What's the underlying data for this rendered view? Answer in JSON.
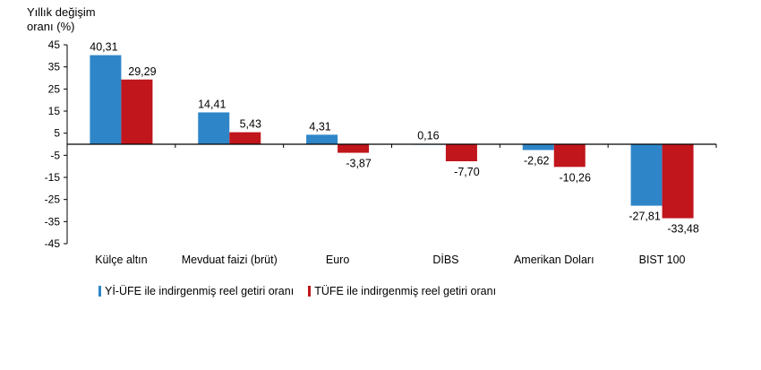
{
  "chart_data": {
    "type": "bar",
    "title": "",
    "ylabel_lines": [
      "Yıllık değişim",
      "oranı (%)"
    ],
    "ylim": [
      -45,
      45
    ],
    "yticks": [
      45,
      35,
      25,
      15,
      5,
      -5,
      -15,
      -25,
      -35,
      -45
    ],
    "categories": [
      "Külçe altın",
      "Mevduat faizi (brüt)",
      "Euro",
      "DİBS",
      "Amerikan Doları",
      "BIST 100"
    ],
    "series": [
      {
        "name": "Yİ-ÜFE ile indirgenmiş reel getiri oranı",
        "color": "#2e86c8",
        "values": [
          40.31,
          14.41,
          4.31,
          0.16,
          -2.62,
          -27.81
        ],
        "labels": [
          "40,31",
          "14,41",
          "4,31",
          "0,16",
          "-2,62",
          "-27,81"
        ]
      },
      {
        "name": "TÜFE ile indirgenmiş reel getiri oranı",
        "color": "#c0161c",
        "values": [
          29.29,
          5.43,
          -3.87,
          -7.7,
          -10.26,
          -33.48
        ],
        "labels": [
          "29,29",
          "5,43",
          "-3,87",
          "-7,70",
          "-10,26",
          "-33,48"
        ]
      }
    ],
    "legend_position": "bottom",
    "grid": false
  }
}
